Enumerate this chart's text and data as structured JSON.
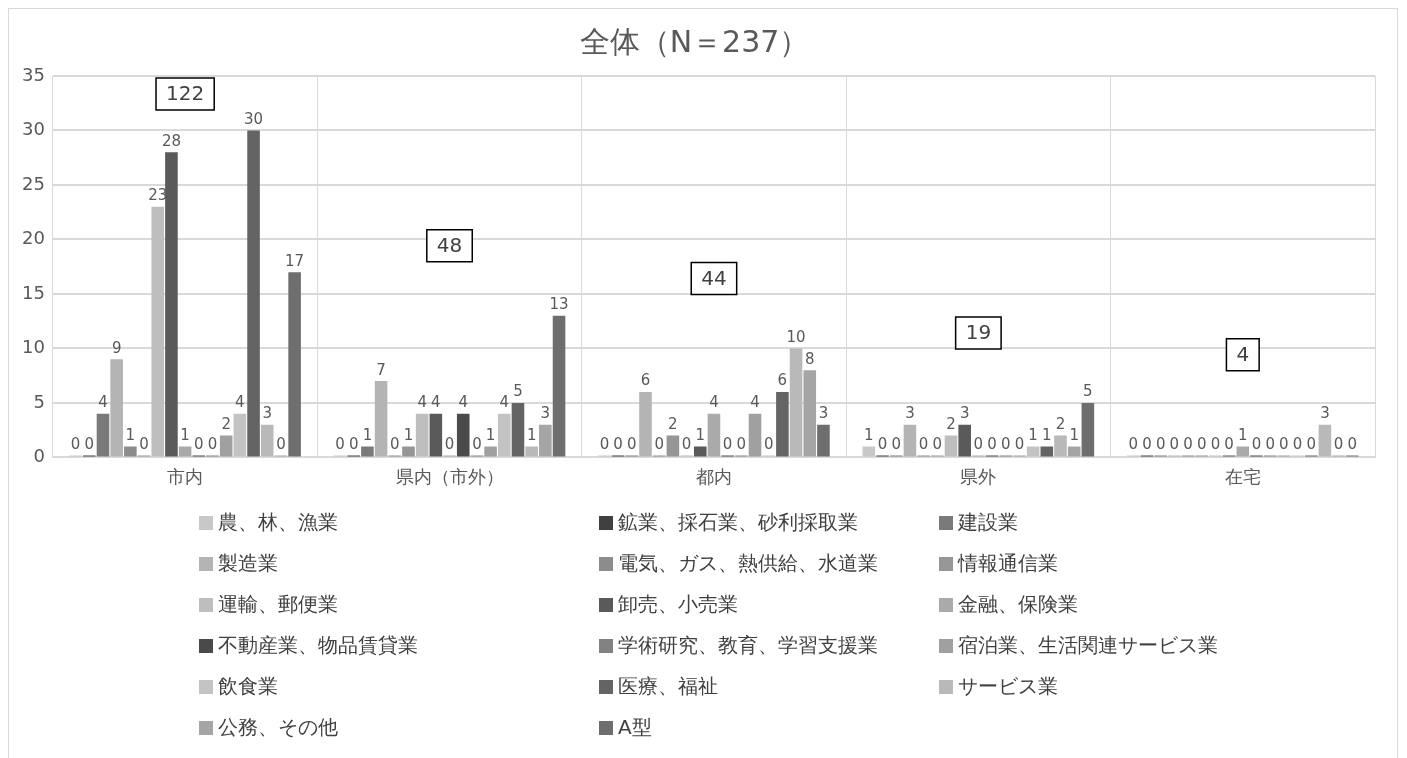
{
  "chart_data": {
    "type": "bar",
    "title": "全体（N＝237）",
    "categories": [
      "市内",
      "県内（市外）",
      "都内",
      "県外",
      "在宅"
    ],
    "series": [
      {
        "name": "農、林、漁業",
        "color": "#c8c8c8",
        "values": [
          0,
          0,
          0,
          1,
          0
        ]
      },
      {
        "name": "鉱業、採石業、砂利採取業",
        "color": "#404040",
        "values": [
          0,
          0,
          0,
          0,
          0
        ]
      },
      {
        "name": "建設業",
        "color": "#7a7a7a",
        "values": [
          4,
          1,
          0,
          0,
          0
        ]
      },
      {
        "name": "製造業",
        "color": "#b4b4b4",
        "values": [
          9,
          7,
          6,
          3,
          0
        ]
      },
      {
        "name": "電気、ガス、熱供給、水道業",
        "color": "#8c8c8c",
        "values": [
          1,
          0,
          0,
          0,
          0
        ]
      },
      {
        "name": "情報通信業",
        "color": "#969696",
        "values": [
          0,
          1,
          2,
          0,
          0
        ]
      },
      {
        "name": "運輸、郵便業",
        "color": "#bebebe",
        "values": [
          23,
          4,
          0,
          2,
          0
        ]
      },
      {
        "name": "卸売、小売業",
        "color": "#5a5a5a",
        "values": [
          28,
          4,
          1,
          3,
          0
        ]
      },
      {
        "name": "金融、保険業",
        "color": "#aaaaaa",
        "values": [
          1,
          0,
          4,
          0,
          1
        ]
      },
      {
        "name": "不動産業、物品賃貸業",
        "color": "#4a4a4a",
        "values": [
          0,
          4,
          0,
          0,
          0
        ]
      },
      {
        "name": "学術研究、教育、学習支援業",
        "color": "#828282",
        "values": [
          0,
          0,
          0,
          0,
          0
        ]
      },
      {
        "name": "宿泊業、生活関連サービス業",
        "color": "#a0a0a0",
        "values": [
          2,
          1,
          4,
          0,
          0
        ]
      },
      {
        "name": "飲食業",
        "color": "#c3c3c3",
        "values": [
          4,
          4,
          0,
          1,
          0
        ]
      },
      {
        "name": "医療、福祉",
        "color": "#646464",
        "values": [
          30,
          5,
          6,
          1,
          0
        ]
      },
      {
        "name": "サービス業",
        "color": "#b9b9b9",
        "values": [
          3,
          1,
          10,
          2,
          3
        ]
      },
      {
        "name": "公務、その他",
        "color": "#a5a5a5",
        "values": [
          0,
          3,
          8,
          1,
          0
        ]
      },
      {
        "name": "A型",
        "color": "#6e6e6e",
        "values": [
          17,
          13,
          3,
          5,
          0
        ]
      }
    ],
    "ylim": [
      0,
      35
    ],
    "yticks": [
      0,
      5,
      10,
      15,
      20,
      25,
      30,
      35
    ],
    "grid": true,
    "legend": "bottom",
    "data_labels": true,
    "annotations": [
      "122",
      "48",
      "44",
      "19",
      "4"
    ]
  }
}
